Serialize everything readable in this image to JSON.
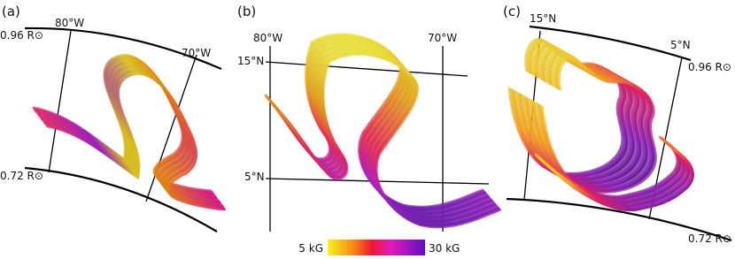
{
  "panels": [
    {
      "label": "(a)",
      "annotations": [
        "80°W",
        "70°W",
        "0.96 R⊙",
        "0.72 R⊙"
      ]
    },
    {
      "label": "(b)",
      "annotations": [
        "80°W",
        "70°W",
        "15°N",
        "5°N"
      ]
    },
    {
      "label": "(c)",
      "annotations": [
        "15°N",
        "5°N",
        "0.96 R⊙",
        "0.72 R⊙"
      ]
    }
  ],
  "colorbar": {
    "min_label": "5 kG",
    "max_label": "30 kG"
  }
}
